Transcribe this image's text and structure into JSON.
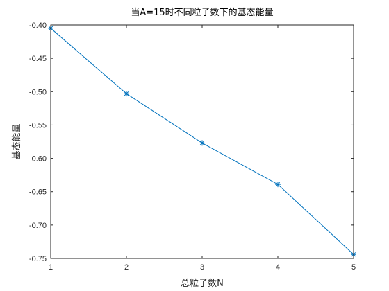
{
  "chart_data": {
    "type": "line",
    "title": "当A=15时不同粒子数下的基态能量",
    "xlabel": "总粒子数N",
    "ylabel": "基态能量",
    "x": [
      1,
      2,
      3,
      4,
      5
    ],
    "series": [
      {
        "values": [
          -0.405,
          -0.503,
          -0.577,
          -0.639,
          -0.744
        ]
      }
    ],
    "xlim": [
      1,
      5
    ],
    "ylim": [
      -0.75,
      -0.4
    ],
    "xticks": [
      "1",
      "2",
      "3",
      "4",
      "5"
    ],
    "yticks": [
      "-0.40",
      "-0.45",
      "-0.50",
      "-0.55",
      "-0.60",
      "-0.65",
      "-0.70",
      "-0.75"
    ],
    "grid": false,
    "marker": "asterisk",
    "colors": {
      "line": "#0072BD",
      "axes": "#262626",
      "background": "#ffffff"
    }
  }
}
